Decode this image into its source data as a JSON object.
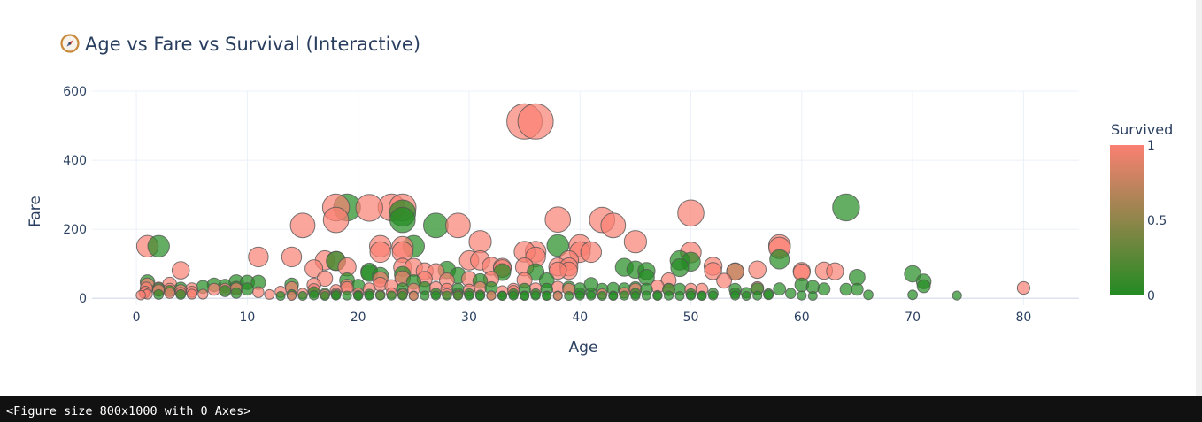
{
  "title_icon": "compass-icon",
  "output": {
    "text": "<Figure size 800x1000 with 0 Axes>"
  },
  "chart_data": {
    "type": "scatter",
    "title": "Age vs Fare vs Survival (Interactive)",
    "xlabel": "Age",
    "ylabel": "Fare",
    "xlim": [
      -4,
      85
    ],
    "ylim": [
      -20,
      600
    ],
    "xticks": [
      0,
      10,
      20,
      30,
      40,
      50,
      60,
      70,
      80
    ],
    "yticks": [
      0,
      200,
      400,
      600
    ],
    "grid": true,
    "colorbar": {
      "title": "Survived",
      "ticks": [
        0,
        0.5,
        1
      ],
      "tick_labels": [
        "0",
        "0.5",
        "1"
      ],
      "color_low": "#228b22",
      "color_high": "#fa8072"
    },
    "size_encodes": "Fare",
    "points": [
      [
        35,
        512,
        1
      ],
      [
        36,
        512,
        1
      ],
      [
        64,
        263,
        0
      ],
      [
        19,
        263,
        0
      ],
      [
        18,
        263,
        1
      ],
      [
        23,
        263,
        1
      ],
      [
        24,
        263,
        1
      ],
      [
        21,
        262,
        1
      ],
      [
        50,
        247,
        1
      ],
      [
        24,
        247,
        0
      ],
      [
        38,
        228,
        1
      ],
      [
        42,
        227,
        1
      ],
      [
        18,
        227,
        1
      ],
      [
        24,
        227,
        0
      ],
      [
        43,
        211,
        1
      ],
      [
        15,
        211,
        1
      ],
      [
        27,
        211,
        0
      ],
      [
        29,
        211,
        1
      ],
      [
        1,
        151,
        1
      ],
      [
        2,
        151,
        0
      ],
      [
        25,
        151,
        0
      ],
      [
        22,
        151,
        1
      ],
      [
        24,
        148,
        1
      ],
      [
        58,
        153,
        1
      ],
      [
        58,
        146,
        1
      ],
      [
        58,
        113,
        0
      ],
      [
        38,
        153,
        0
      ],
      [
        40,
        153,
        1
      ],
      [
        40,
        134,
        1
      ],
      [
        41,
        134,
        1
      ],
      [
        45,
        164,
        1
      ],
      [
        31,
        164,
        1
      ],
      [
        11,
        120,
        1
      ],
      [
        14,
        120,
        1
      ],
      [
        22,
        134,
        1
      ],
      [
        24,
        134,
        1
      ],
      [
        36,
        135,
        1
      ],
      [
        35,
        135,
        1
      ],
      [
        36,
        120,
        1
      ],
      [
        17,
        110,
        1
      ],
      [
        18,
        108,
        1
      ],
      [
        18,
        108,
        0
      ],
      [
        30,
        110,
        1
      ],
      [
        31,
        110,
        1
      ],
      [
        32,
        93,
        1
      ],
      [
        49,
        110,
        0
      ],
      [
        50,
        133,
        1
      ],
      [
        50,
        106,
        0
      ],
      [
        35,
        91,
        1
      ],
      [
        33,
        90,
        1
      ],
      [
        38,
        91,
        1
      ],
      [
        39,
        91,
        1
      ],
      [
        39,
        80,
        1
      ],
      [
        24,
        90,
        1
      ],
      [
        25,
        90,
        1
      ],
      [
        16,
        86,
        1
      ],
      [
        19,
        91,
        1
      ],
      [
        4,
        81,
        1
      ],
      [
        39,
        110,
        1
      ],
      [
        44,
        90,
        0
      ],
      [
        45,
        83,
        0
      ],
      [
        46,
        79,
        0
      ],
      [
        52,
        93,
        1
      ],
      [
        52,
        79,
        1
      ],
      [
        54,
        78,
        0
      ],
      [
        54,
        77,
        1
      ],
      [
        56,
        83,
        1
      ],
      [
        60,
        79,
        1
      ],
      [
        60,
        75,
        1
      ],
      [
        62,
        80,
        1
      ],
      [
        63,
        78,
        1
      ],
      [
        65,
        61,
        0
      ],
      [
        70,
        71,
        0
      ],
      [
        71,
        49,
        0
      ],
      [
        71,
        35,
        0
      ],
      [
        60,
        39,
        0
      ],
      [
        61,
        33,
        0
      ],
      [
        62,
        27,
        0
      ],
      [
        64,
        26,
        0
      ],
      [
        65,
        26,
        0
      ],
      [
        66,
        10,
        0
      ],
      [
        70,
        10,
        0
      ],
      [
        74,
        8,
        0
      ],
      [
        80,
        30,
        1
      ],
      [
        36,
        76,
        0
      ],
      [
        37,
        52,
        0
      ],
      [
        38,
        80,
        1
      ],
      [
        26,
        78,
        1
      ],
      [
        27,
        76,
        1
      ],
      [
        28,
        82,
        0
      ],
      [
        29,
        66,
        0
      ],
      [
        30,
        56,
        1
      ],
      [
        31,
        50,
        0
      ],
      [
        32,
        56,
        1
      ],
      [
        33,
        76,
        0
      ],
      [
        33,
        86,
        1
      ],
      [
        34,
        26,
        1
      ],
      [
        35,
        53,
        1
      ],
      [
        35,
        26,
        0
      ],
      [
        21,
        77,
        0
      ],
      [
        21,
        73,
        0
      ],
      [
        22,
        66,
        0
      ],
      [
        22,
        55,
        1
      ],
      [
        22,
        41,
        1
      ],
      [
        23,
        35,
        1
      ],
      [
        24,
        57,
        1
      ],
      [
        24,
        69,
        0
      ],
      [
        24,
        27,
        0
      ],
      [
        24,
        15,
        0
      ],
      [
        25,
        26,
        1
      ],
      [
        25,
        47,
        0
      ],
      [
        26,
        56,
        1
      ],
      [
        26,
        30,
        0
      ],
      [
        27,
        30,
        1
      ],
      [
        27,
        14,
        0
      ],
      [
        28,
        26,
        1
      ],
      [
        28,
        52,
        1
      ],
      [
        29,
        26,
        0
      ],
      [
        29,
        15,
        0
      ],
      [
        30,
        24,
        1
      ],
      [
        30,
        13,
        0
      ],
      [
        31,
        10,
        0
      ],
      [
        31,
        30,
        1
      ],
      [
        32,
        8,
        0
      ],
      [
        32,
        30,
        0
      ],
      [
        33,
        20,
        1
      ],
      [
        33,
        8,
        0
      ],
      [
        34,
        13,
        0
      ],
      [
        34,
        21,
        1
      ],
      [
        35,
        8,
        0
      ],
      [
        36,
        13,
        0
      ],
      [
        36,
        27,
        1
      ],
      [
        37,
        26,
        0
      ],
      [
        37,
        8,
        0
      ],
      [
        38,
        8,
        0
      ],
      [
        38,
        31,
        1
      ],
      [
        39,
        31,
        0
      ],
      [
        39,
        26,
        1
      ],
      [
        40,
        27,
        0
      ],
      [
        40,
        15,
        0
      ],
      [
        41,
        15,
        0
      ],
      [
        41,
        40,
        0
      ],
      [
        42,
        26,
        0
      ],
      [
        42,
        13,
        1
      ],
      [
        43,
        28,
        0
      ],
      [
        43,
        8,
        0
      ],
      [
        44,
        27,
        0
      ],
      [
        44,
        16,
        1
      ],
      [
        45,
        30,
        0
      ],
      [
        45,
        14,
        0
      ],
      [
        45,
        26,
        1
      ],
      [
        46,
        26,
        0
      ],
      [
        46,
        61,
        0
      ],
      [
        47,
        34,
        1
      ],
      [
        47,
        9,
        0
      ],
      [
        48,
        26,
        1
      ],
      [
        48,
        25,
        0
      ],
      [
        48,
        52,
        1
      ],
      [
        49,
        26,
        0
      ],
      [
        49,
        89,
        0
      ],
      [
        50,
        26,
        1
      ],
      [
        50,
        13,
        0
      ],
      [
        51,
        26,
        1
      ],
      [
        51,
        8,
        0
      ],
      [
        52,
        14,
        0
      ],
      [
        53,
        51,
        1
      ],
      [
        54,
        26,
        0
      ],
      [
        54,
        15,
        0
      ],
      [
        55,
        16,
        0
      ],
      [
        56,
        27,
        0
      ],
      [
        56,
        30,
        1
      ],
      [
        57,
        13,
        0
      ],
      [
        57,
        10,
        0
      ],
      [
        58,
        27,
        0
      ],
      [
        59,
        14,
        0
      ],
      [
        0.4,
        9,
        1
      ],
      [
        0.7,
        15,
        1
      ],
      [
        0.8,
        19,
        1
      ],
      [
        0.9,
        29,
        1
      ],
      [
        1,
        39,
        1
      ],
      [
        1,
        12,
        1
      ],
      [
        1,
        47,
        0
      ],
      [
        2,
        29,
        1
      ],
      [
        2,
        27,
        0
      ],
      [
        2,
        23,
        1
      ],
      [
        2,
        11,
        0
      ],
      [
        3,
        41,
        1
      ],
      [
        3,
        26,
        1
      ],
      [
        3,
        21,
        0
      ],
      [
        3,
        15,
        1
      ],
      [
        4,
        23,
        1
      ],
      [
        4,
        16,
        1
      ],
      [
        4,
        11,
        0
      ],
      [
        4,
        29,
        0
      ],
      [
        5,
        27,
        1
      ],
      [
        5,
        19,
        1
      ],
      [
        5,
        12,
        1
      ],
      [
        6,
        33,
        0
      ],
      [
        6,
        12,
        1
      ],
      [
        7,
        39,
        0
      ],
      [
        7,
        26,
        1
      ],
      [
        8,
        26,
        1
      ],
      [
        8,
        36,
        0
      ],
      [
        8,
        21,
        0
      ],
      [
        9,
        31,
        0
      ],
      [
        9,
        27,
        1
      ],
      [
        9,
        15,
        0
      ],
      [
        9,
        47,
        0
      ],
      [
        10,
        27,
        0
      ],
      [
        10,
        46,
        0
      ],
      [
        11,
        18,
        1
      ],
      [
        11,
        46,
        0
      ],
      [
        12,
        11,
        1
      ],
      [
        13,
        19,
        1
      ],
      [
        13,
        7,
        0
      ],
      [
        14,
        39,
        0
      ],
      [
        14,
        30,
        1
      ],
      [
        14,
        11,
        0
      ],
      [
        14,
        7,
        1
      ],
      [
        15,
        7,
        0
      ],
      [
        15,
        14,
        1
      ],
      [
        16,
        25,
        1
      ],
      [
        16,
        9,
        0
      ],
      [
        16,
        18,
        0
      ],
      [
        16,
        39,
        1
      ],
      [
        17,
        7,
        0
      ],
      [
        17,
        57,
        1
      ],
      [
        17,
        11,
        1
      ],
      [
        17,
        14,
        0
      ],
      [
        18,
        11,
        0
      ],
      [
        18,
        8,
        0
      ],
      [
        18,
        23,
        1
      ],
      [
        18,
        14,
        1
      ],
      [
        19,
        8,
        0
      ],
      [
        19,
        52,
        0
      ],
      [
        19,
        30,
        1
      ],
      [
        19,
        36,
        1
      ],
      [
        20,
        9,
        0
      ],
      [
        20,
        7,
        0
      ],
      [
        20,
        15,
        1
      ],
      [
        20,
        36,
        0
      ],
      [
        21,
        8,
        0
      ],
      [
        21,
        27,
        1
      ],
      [
        21,
        12,
        0
      ],
      [
        22,
        8,
        0
      ],
      [
        22,
        10,
        1
      ],
      [
        23,
        8,
        0
      ],
      [
        23,
        15,
        1
      ],
      [
        24,
        8,
        0
      ],
      [
        24,
        12,
        1
      ],
      [
        25,
        8,
        0
      ],
      [
        25,
        7,
        1
      ],
      [
        26,
        8,
        0
      ],
      [
        27,
        8,
        0
      ],
      [
        28,
        8,
        0
      ],
      [
        28,
        13,
        1
      ],
      [
        29,
        8,
        0
      ],
      [
        29,
        10,
        1
      ],
      [
        30,
        8,
        0
      ],
      [
        31,
        7,
        0
      ],
      [
        32,
        8,
        1
      ],
      [
        33,
        7,
        0
      ],
      [
        34,
        8,
        0
      ],
      [
        35,
        7,
        0
      ],
      [
        36,
        8,
        0
      ],
      [
        37,
        7,
        0
      ],
      [
        38,
        7,
        1
      ],
      [
        39,
        7,
        0
      ],
      [
        40,
        8,
        0
      ],
      [
        41,
        8,
        0
      ],
      [
        42,
        7,
        0
      ],
      [
        43,
        7,
        0
      ],
      [
        44,
        8,
        0
      ],
      [
        45,
        7,
        0
      ],
      [
        46,
        8,
        0
      ],
      [
        47,
        7,
        0
      ],
      [
        48,
        8,
        0
      ],
      [
        49,
        7,
        0
      ],
      [
        50,
        8,
        0
      ],
      [
        51,
        7,
        0
      ],
      [
        52,
        8,
        0
      ],
      [
        54,
        8,
        0
      ],
      [
        55,
        7,
        0
      ],
      [
        56,
        8,
        0
      ],
      [
        60,
        8,
        0
      ],
      [
        61,
        7,
        0
      ]
    ]
  }
}
